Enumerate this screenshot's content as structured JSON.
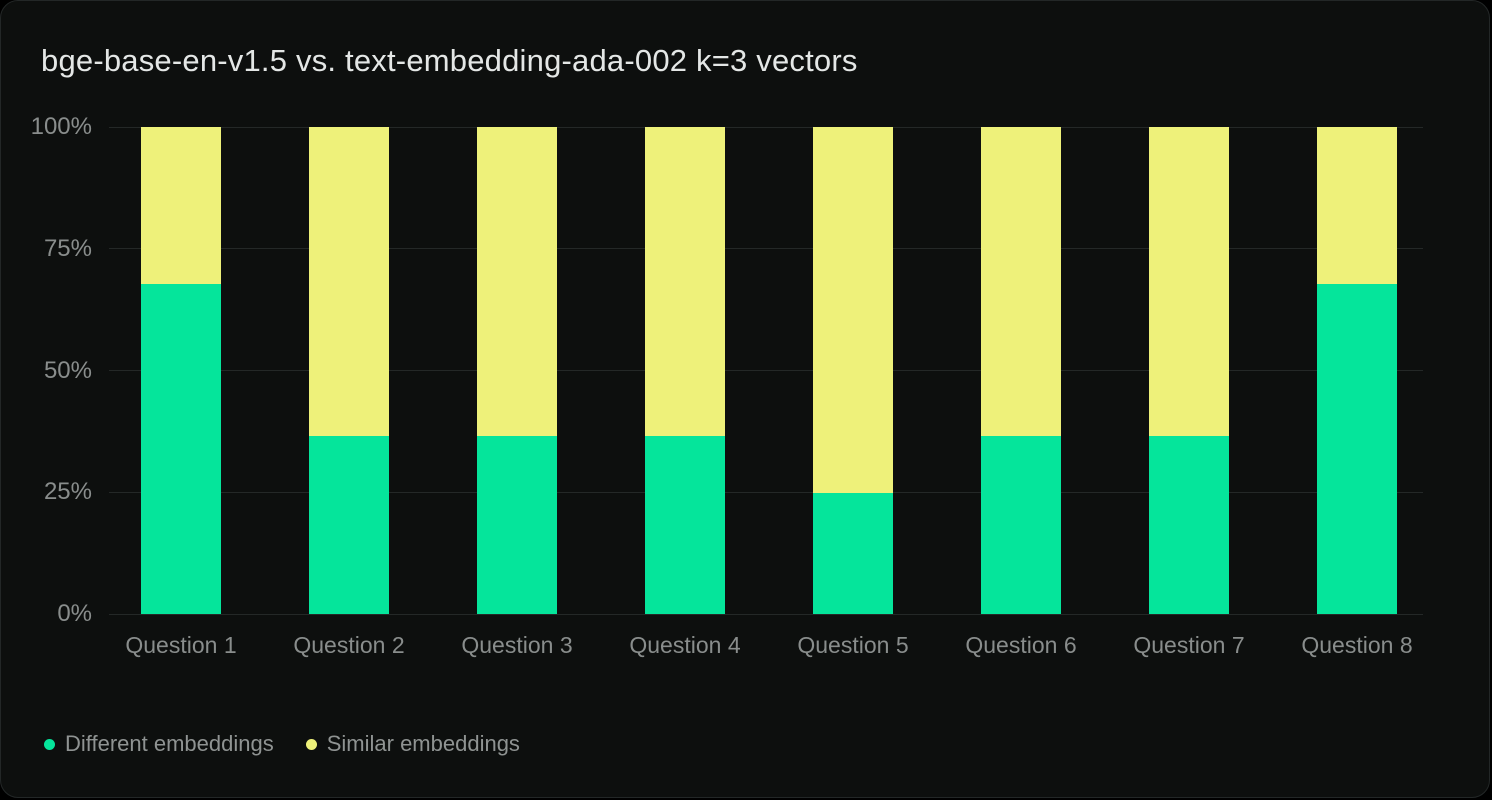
{
  "title": "bge-base-en-v1.5 vs. text-embedding-ada-002 k=3 vectors",
  "colors": {
    "background": "#0d0f0e",
    "outer_background": "#000000",
    "gridline": "#242827",
    "title_text": "#e4e7e6",
    "axis_text": "#898d8c",
    "legend_text": "#8f9392"
  },
  "chart_data": {
    "type": "bar",
    "stacked": true,
    "title": "bge-base-en-v1.5 vs. text-embedding-ada-002 k=3 vectors",
    "categories": [
      "Question 1",
      "Question 2",
      "Question 3",
      "Question 4",
      "Question 5",
      "Question 6",
      "Question 7",
      "Question 8"
    ],
    "series": [
      {
        "name": "Different embeddings",
        "color": "#05e59b",
        "values": [
          67.7,
          36.5,
          36.5,
          36.5,
          24.9,
          36.5,
          36.5,
          67.7
        ]
      },
      {
        "name": "Similar embeddings",
        "color": "#eef17a",
        "values": [
          32.3,
          63.5,
          63.5,
          63.5,
          75.1,
          63.5,
          63.5,
          32.3
        ]
      }
    ],
    "xlabel": "",
    "ylabel": "",
    "ylim": [
      0,
      100
    ],
    "unit": "%",
    "y_ticks": [
      {
        "label": "0%",
        "value": 0
      },
      {
        "label": "25%",
        "value": 25
      },
      {
        "label": "50%",
        "value": 50
      },
      {
        "label": "75%",
        "value": 75
      },
      {
        "label": "100%",
        "value": 100
      }
    ],
    "grid": true,
    "legend_position": "bottom-left"
  }
}
